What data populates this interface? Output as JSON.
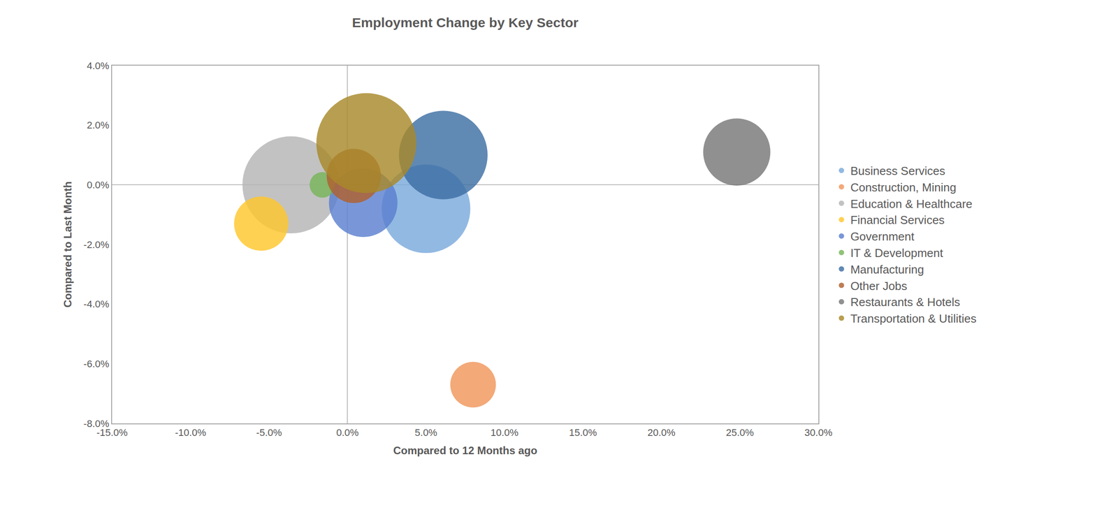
{
  "chart_data": {
    "type": "bubble",
    "title": "Employment Change by Key Sector",
    "x_label": "Compared to 12 Months ago",
    "y_label": "Compared to Last Month",
    "xlim": [
      -15,
      30
    ],
    "ylim": [
      -8,
      4
    ],
    "xticks": [
      {
        "value": -15,
        "label": "-15.0%"
      },
      {
        "value": -10,
        "label": "-10.0%"
      },
      {
        "value": -5,
        "label": "-5.0%"
      },
      {
        "value": 0,
        "label": "0.0%"
      },
      {
        "value": 5,
        "label": "5.0%"
      },
      {
        "value": 10,
        "label": "10.0%"
      },
      {
        "value": 15,
        "label": "15.0%"
      },
      {
        "value": 20,
        "label": "20.0%"
      },
      {
        "value": 25,
        "label": "25.0%"
      },
      {
        "value": 30,
        "label": "30.0%"
      }
    ],
    "yticks": [
      {
        "value": -8,
        "label": "-8.0%"
      },
      {
        "value": -6,
        "label": "-6.0%"
      },
      {
        "value": -4,
        "label": "-4.0%"
      },
      {
        "value": -2,
        "label": "-2.0%"
      },
      {
        "value": 0,
        "label": "0.0%"
      },
      {
        "value": 2,
        "label": "2.0%"
      },
      {
        "value": 4,
        "label": "4.0%"
      }
    ],
    "grid": false,
    "legend": "right",
    "series": [
      {
        "name": "Business Services",
        "color": "#7aaadc",
        "x": [
          5.0
        ],
        "values": [
          -0.8
        ],
        "size": [
          385
        ]
      },
      {
        "name": "Construction, Mining",
        "color": "#f0965a",
        "x": [
          8.0
        ],
        "values": [
          -6.7
        ],
        "size": [
          102
        ]
      },
      {
        "name": "Education & Healthcare",
        "color": "#b4b4b4",
        "x": [
          -3.6
        ],
        "values": [
          0.0
        ],
        "size": [
          462
        ]
      },
      {
        "name": "Financial Services",
        "color": "#ffc72c",
        "x": [
          -5.5
        ],
        "values": [
          -1.3
        ],
        "size": [
          144
        ]
      },
      {
        "name": "Government",
        "color": "#5b80cf",
        "x": [
          1.0
        ],
        "values": [
          -0.6
        ],
        "size": [
          230
        ]
      },
      {
        "name": "IT & Development",
        "color": "#77b55a",
        "x": [
          -1.6
        ],
        "values": [
          0.0
        ],
        "size": [
          32
        ]
      },
      {
        "name": "Manufacturing",
        "color": "#3d6fa3",
        "x": [
          6.1
        ],
        "values": [
          1.0
        ],
        "size": [
          385
        ]
      },
      {
        "name": "Other Jobs",
        "color": "#b0602e",
        "x": [
          0.4
        ],
        "values": [
          0.3
        ],
        "size": [
          144
        ]
      },
      {
        "name": "Restaurants & Hotels",
        "color": "#777777",
        "x": [
          24.8
        ],
        "values": [
          1.1
        ],
        "size": [
          221
        ]
      },
      {
        "name": "Transportation & Utilities",
        "color": "#a8892a",
        "x": [
          1.2
        ],
        "values": [
          1.4
        ],
        "size": [
          490
        ]
      }
    ]
  }
}
